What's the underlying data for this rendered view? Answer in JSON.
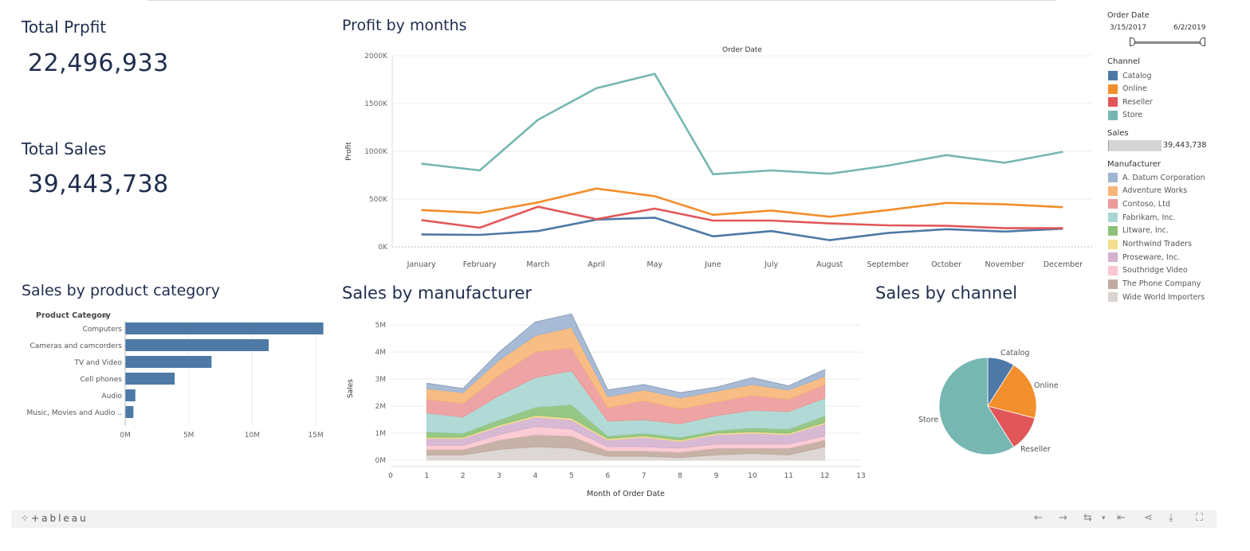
{
  "kpis": {
    "profit_title": "Total Prpfit",
    "profit_value": "22,496,933",
    "sales_title": "Total Sales",
    "sales_value": "39,443,738"
  },
  "filters": {
    "order_date_title": "Order Date",
    "date_start": "3/15/2017",
    "date_end": "6/2/2019",
    "channel_title": "Channel",
    "channels": [
      {
        "label": "Catalog",
        "color": "#4e79a7"
      },
      {
        "label": "Online",
        "color": "#f28e2b"
      },
      {
        "label": "Reseller",
        "color": "#e15759"
      },
      {
        "label": "Store",
        "color": "#76b7b2"
      }
    ],
    "sales_title": "Sales",
    "sales_value": "39,443,738",
    "sales_fill": 0.98,
    "manufacturer_title": "Manufacturer",
    "manufacturers": [
      {
        "label": "A. Datum Corporation",
        "color": "#9fb4d1"
      },
      {
        "label": "Adventure Works",
        "color": "#f7b678"
      },
      {
        "label": "Contoso, Ltd",
        "color": "#ec9a9a"
      },
      {
        "label": "Fabrikam, Inc.",
        "color": "#a9d6d2"
      },
      {
        "label": "Litware, Inc.",
        "color": "#8cc178"
      },
      {
        "label": "Northwind Traders",
        "color": "#f4dd8b"
      },
      {
        "label": "Proseware, Inc.",
        "color": "#d3b1cf"
      },
      {
        "label": "Southridge Video",
        "color": "#fbc6cf"
      },
      {
        "label": "The Phone Company",
        "color": "#c1aa9f"
      },
      {
        "label": "Wide World Importers",
        "color": "#d9d4d0"
      }
    ]
  },
  "sections": {
    "profit_months": "Profit by months",
    "product_category": "Sales by product category",
    "manufacturer": "Sales by manufacturer",
    "channel": "Sales by channel"
  },
  "footer": {
    "brand": "+ableau"
  },
  "chart_data": [
    {
      "type": "line",
      "title": "Profit by months",
      "top_label": "Order Date",
      "ylabel": "Profit",
      "categories": [
        "January",
        "February",
        "March",
        "April",
        "May",
        "June",
        "July",
        "August",
        "September",
        "October",
        "November",
        "December"
      ],
      "y_ticks": [
        "0K",
        "500K",
        "1000K",
        "1500K",
        "2000K"
      ],
      "ylim": [
        0,
        2000000
      ],
      "series": [
        {
          "name": "Catalog",
          "color": "#4e79a7",
          "values": [
            130000,
            125000,
            165000,
            285000,
            305000,
            110000,
            165000,
            70000,
            145000,
            185000,
            160000,
            190000
          ]
        },
        {
          "name": "Online",
          "color": "#f28e2b",
          "values": [
            385000,
            355000,
            465000,
            610000,
            530000,
            335000,
            380000,
            315000,
            385000,
            460000,
            445000,
            415000
          ]
        },
        {
          "name": "Reseller",
          "color": "#e15759",
          "values": [
            280000,
            200000,
            420000,
            290000,
            400000,
            275000,
            275000,
            245000,
            225000,
            220000,
            195000,
            195000
          ]
        },
        {
          "name": "Store",
          "color": "#76b7b2",
          "values": [
            870000,
            800000,
            1330000,
            1660000,
            1810000,
            760000,
            800000,
            765000,
            850000,
            960000,
            880000,
            995000
          ]
        }
      ]
    },
    {
      "type": "bar",
      "title": "Sales by product category",
      "column_header": "Product Category",
      "categories": [
        "Computers",
        "Cameras and camcorders",
        "TV and Video",
        "Cell phones",
        "Audio",
        "Music, Movies and Audio .."
      ],
      "values": [
        15600000,
        11300000,
        6800000,
        3900000,
        800000,
        650000
      ],
      "x_ticks": [
        "0M",
        "5M",
        "10M",
        "15M"
      ],
      "xlim": [
        0,
        16000000
      ],
      "color": "#4e79a7"
    },
    {
      "type": "area",
      "title": "Sales by manufacturer",
      "xlabel": "Month of Order Date",
      "ylabel": "Sales",
      "x_ticks": [
        "0",
        "1",
        "2",
        "3",
        "4",
        "5",
        "6",
        "7",
        "8",
        "9",
        "10",
        "11",
        "12",
        "13"
      ],
      "y_ticks": [
        "0M",
        "1M",
        "2M",
        "3M",
        "4M",
        "5M"
      ],
      "x": [
        1,
        2,
        3,
        4,
        5,
        6,
        7,
        8,
        9,
        10,
        11,
        12
      ],
      "series": [
        {
          "name": "Wide World Importers",
          "color": "#d9d4d0",
          "values": [
            200000,
            200000,
            400000,
            500000,
            450000,
            150000,
            150000,
            100000,
            200000,
            250000,
            200000,
            500000
          ]
        },
        {
          "name": "The Phone Company",
          "color": "#c1aa9f",
          "values": [
            200000,
            200000,
            350000,
            450000,
            450000,
            200000,
            200000,
            200000,
            250000,
            200000,
            250000,
            250000
          ]
        },
        {
          "name": "Southridge Video",
          "color": "#fbc6cf",
          "values": [
            150000,
            150000,
            200000,
            300000,
            250000,
            150000,
            150000,
            150000,
            150000,
            150000,
            150000,
            150000
          ]
        },
        {
          "name": "Proseware, Inc.",
          "color": "#d3b1cf",
          "values": [
            250000,
            250000,
            300000,
            350000,
            350000,
            250000,
            350000,
            250000,
            350000,
            400000,
            350000,
            450000
          ]
        },
        {
          "name": "Northwind Traders",
          "color": "#f4dd8b",
          "values": [
            50000,
            50000,
            50000,
            60000,
            60000,
            50000,
            50000,
            50000,
            50000,
            50000,
            50000,
            50000
          ]
        },
        {
          "name": "Litware, Inc.",
          "color": "#8cc178",
          "values": [
            200000,
            150000,
            200000,
            300000,
            500000,
            100000,
            100000,
            100000,
            100000,
            150000,
            150000,
            250000
          ]
        },
        {
          "name": "Fabrikam, Inc.",
          "color": "#a9d6d2",
          "values": [
            700000,
            600000,
            900000,
            1100000,
            1250000,
            550000,
            500000,
            500000,
            550000,
            650000,
            650000,
            650000
          ]
        },
        {
          "name": "Contoso, Ltd",
          "color": "#ec9a9a",
          "values": [
            500000,
            500000,
            750000,
            950000,
            850000,
            500000,
            700000,
            550000,
            500000,
            550000,
            450000,
            500000
          ]
        },
        {
          "name": "Adventure Works",
          "color": "#f7b678",
          "values": [
            400000,
            400000,
            550000,
            600000,
            750000,
            400000,
            400000,
            400000,
            400000,
            400000,
            350000,
            300000
          ]
        },
        {
          "name": "A. Datum Corporation",
          "color": "#9fb4d1",
          "values": [
            200000,
            150000,
            300000,
            500000,
            500000,
            250000,
            200000,
            200000,
            150000,
            250000,
            150000,
            250000
          ]
        }
      ]
    },
    {
      "type": "pie",
      "title": "Sales by channel",
      "labels": [
        "Catalog",
        "Online",
        "Reseller",
        "Store"
      ],
      "values": [
        0.09,
        0.2,
        0.12,
        0.59
      ],
      "colors": [
        "#4e79a7",
        "#f28e2b",
        "#e15759",
        "#76b7b2"
      ]
    }
  ]
}
